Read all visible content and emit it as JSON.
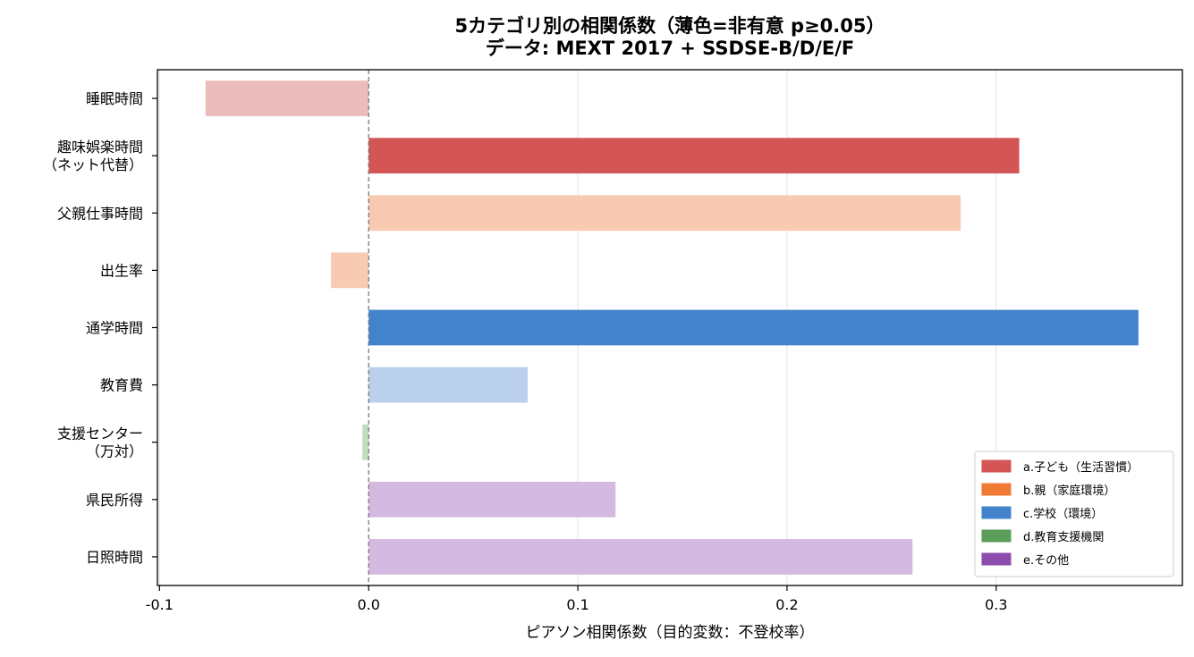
{
  "chart_data": {
    "type": "bar",
    "orientation": "horizontal",
    "title_lines": [
      "5カテゴリ別の相関係数（薄色=非有意 p≥0.05）",
      "データ: MEXT 2017 + SSDSE-B/D/E/F"
    ],
    "xlabel": "ピアソン相関係数（目的変数：不登校率）",
    "ylabel": "",
    "xlim": [
      -0.101,
      0.389
    ],
    "xticks": [
      -0.1,
      0.0,
      0.1,
      0.2,
      0.3
    ],
    "xtick_labels": [
      "-0.1",
      "0.0",
      "0.1",
      "0.2",
      "0.3"
    ],
    "grid": "x",
    "zero_line": "dashed",
    "legend_position": "lower-right",
    "categories": [
      {
        "lines": [
          "睡眠時間"
        ],
        "value": -0.078,
        "group": "a",
        "significant": false
      },
      {
        "lines": [
          "趣味娯楽時間",
          "（ネット代替）"
        ],
        "value": 0.311,
        "group": "a",
        "significant": true
      },
      {
        "lines": [
          "父親仕事時間"
        ],
        "value": 0.283,
        "group": "b",
        "significant": false
      },
      {
        "lines": [
          "出生率"
        ],
        "value": -0.018,
        "group": "b",
        "significant": false
      },
      {
        "lines": [
          "通学時間"
        ],
        "value": 0.368,
        "group": "c",
        "significant": true
      },
      {
        "lines": [
          "教育費"
        ],
        "value": 0.076,
        "group": "c",
        "significant": false
      },
      {
        "lines": [
          "支援センター",
          "（万対）"
        ],
        "value": -0.003,
        "group": "d",
        "significant": false
      },
      {
        "lines": [
          "県民所得"
        ],
        "value": 0.118,
        "group": "e",
        "significant": false
      },
      {
        "lines": [
          "日照時間"
        ],
        "value": 0.26,
        "group": "e",
        "significant": false
      }
    ],
    "groups": {
      "a": {
        "label": "a.子ども（生活習慣）",
        "color": "#d45555",
        "light": "#ecbcbc"
      },
      "b": {
        "label": "b.親（家庭環境）",
        "color": "#f07a35",
        "light": "#f7cab1"
      },
      "c": {
        "label": "c.学校（環境）",
        "color": "#4383cb",
        "light": "#bad0ec"
      },
      "d": {
        "label": "d.教育支援機関",
        "color": "#5a9e5a",
        "light": "#c1dbc1"
      },
      "e": {
        "label": "e.その他",
        "color": "#8c4dad",
        "light": "#d4bae0"
      }
    },
    "legend_order": [
      "a",
      "b",
      "c",
      "d",
      "e"
    ]
  }
}
